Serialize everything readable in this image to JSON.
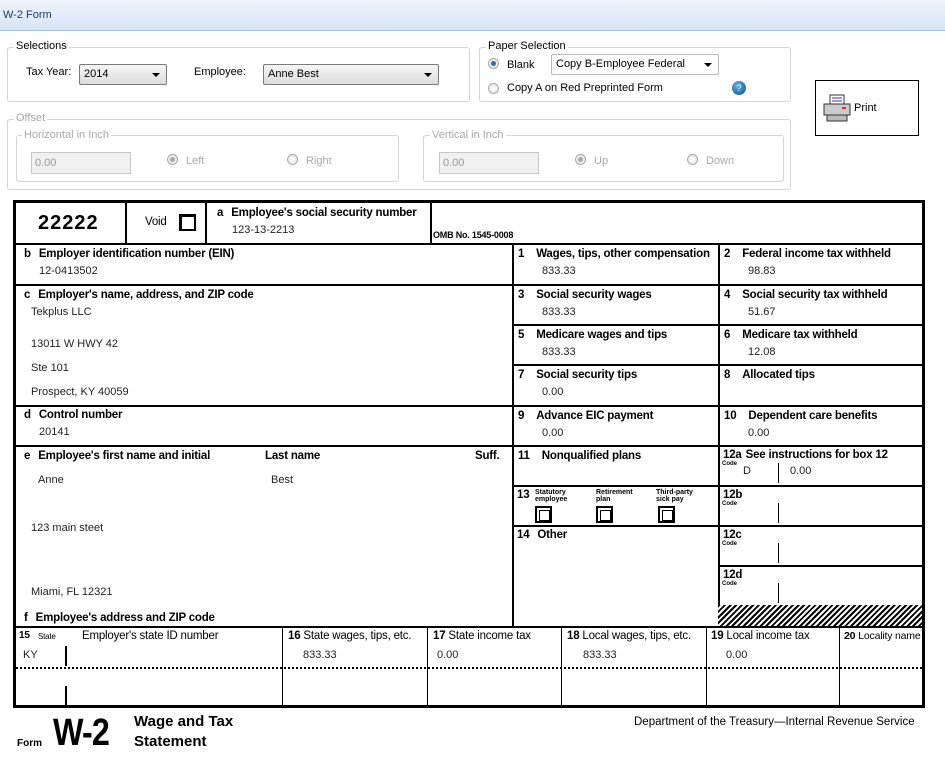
{
  "window": {
    "title": "W-2 Form"
  },
  "selections": {
    "legend": "Selections",
    "tax_year_label": "Tax Year:",
    "tax_year": "2014",
    "employee_label": "Employee:",
    "employee": "Anne Best"
  },
  "paper": {
    "legend": "Paper Selection",
    "blank_label": "Blank",
    "copy_select": "Copy B-Employee Federal",
    "copy_a_label": "Copy A on Red Preprinted Form",
    "selected": "Blank"
  },
  "print": {
    "label": "Print"
  },
  "offset": {
    "legend": "Offset",
    "horizontal": {
      "legend": "Horizontal in Inch",
      "value": "0.00",
      "left": "Left",
      "right": "Right"
    },
    "vertical": {
      "legend": "Vertical in Inch",
      "value": "0.00",
      "up": "Up",
      "down": "Down"
    }
  },
  "w2": {
    "control_code": "22222",
    "void_label": "Void",
    "a": {
      "num": "a",
      "label": "Employee's social security number",
      "value": "123-13-2213"
    },
    "omb": "OMB No. 1545-0008",
    "b": {
      "num": "b",
      "label": "Employer identification number (EIN)",
      "value": "12-0413502"
    },
    "c": {
      "num": "c",
      "label": "Employer's name, address, and ZIP code",
      "lines": [
        "Tekplus LLC",
        "13011 W HWY 42",
        "Ste 101",
        "Prospect, KY 40059"
      ]
    },
    "d": {
      "num": "d",
      "label": "Control number",
      "value": "20141"
    },
    "e": {
      "num": "e",
      "label": "Employee's first name and initial",
      "last_label": "Last name",
      "suff_label": "Suff.",
      "first": "Anne",
      "last": "Best",
      "address1": "123 main steet",
      "address2": "Miami, FL 12321"
    },
    "f": {
      "num": "f",
      "label": "Employee's address and ZIP code"
    },
    "boxes": [
      {
        "num": "1",
        "label": "Wages, tips, other compensation",
        "value": "833.33"
      },
      {
        "num": "2",
        "label": "Federal income tax withheld",
        "value": "98.83"
      },
      {
        "num": "3",
        "label": "Social security wages",
        "value": "833.33"
      },
      {
        "num": "4",
        "label": "Social security tax withheld",
        "value": "51.67"
      },
      {
        "num": "5",
        "label": "Medicare wages and tips",
        "value": "833.33"
      },
      {
        "num": "6",
        "label": "Medicare tax withheld",
        "value": "12.08"
      },
      {
        "num": "7",
        "label": "Social security tips",
        "value": "0.00"
      },
      {
        "num": "8",
        "label": "Allocated tips",
        "value": ""
      },
      {
        "num": "9",
        "label": "Advance EIC payment",
        "value": "0.00"
      },
      {
        "num": "10",
        "label": "Dependent care benefits",
        "value": "0.00"
      },
      {
        "num": "11",
        "label": "Nonqualified plans",
        "value": ""
      }
    ],
    "box12": [
      {
        "num": "12a",
        "label": "See instructions for box 12",
        "code": "D",
        "value": "0.00"
      },
      {
        "num": "12b",
        "code": "",
        "value": ""
      },
      {
        "num": "12c",
        "code": "",
        "value": ""
      },
      {
        "num": "12d",
        "code": "",
        "value": ""
      }
    ],
    "code_label": "Code",
    "box13": {
      "num": "13",
      "statutory": "Statutory employee",
      "retirement": "Retirement plan",
      "thirdparty": "Third-party sick pay"
    },
    "box14": {
      "num": "14",
      "label": "Other"
    },
    "state": {
      "h15": "15",
      "state_label": "State",
      "id_label": "Employer's state ID number",
      "h16": "16",
      "l16": "State wages, tips, etc.",
      "h17": "17",
      "l17": "State income tax",
      "h18": "18",
      "l18": "Local wages, tips, etc.",
      "h19": "19",
      "l19": "Local income tax",
      "h20": "20",
      "l20": "Locality name",
      "state": "KY",
      "state_wages": "833.33",
      "state_tax": "0.00",
      "local_wages": "833.33",
      "local_tax": "0.00"
    },
    "footer": {
      "form": "Form",
      "code": "W-2",
      "title1": "Wage and Tax",
      "title2": "Statement",
      "dept": "Department of the Treasury—Internal Revenue Service"
    }
  }
}
